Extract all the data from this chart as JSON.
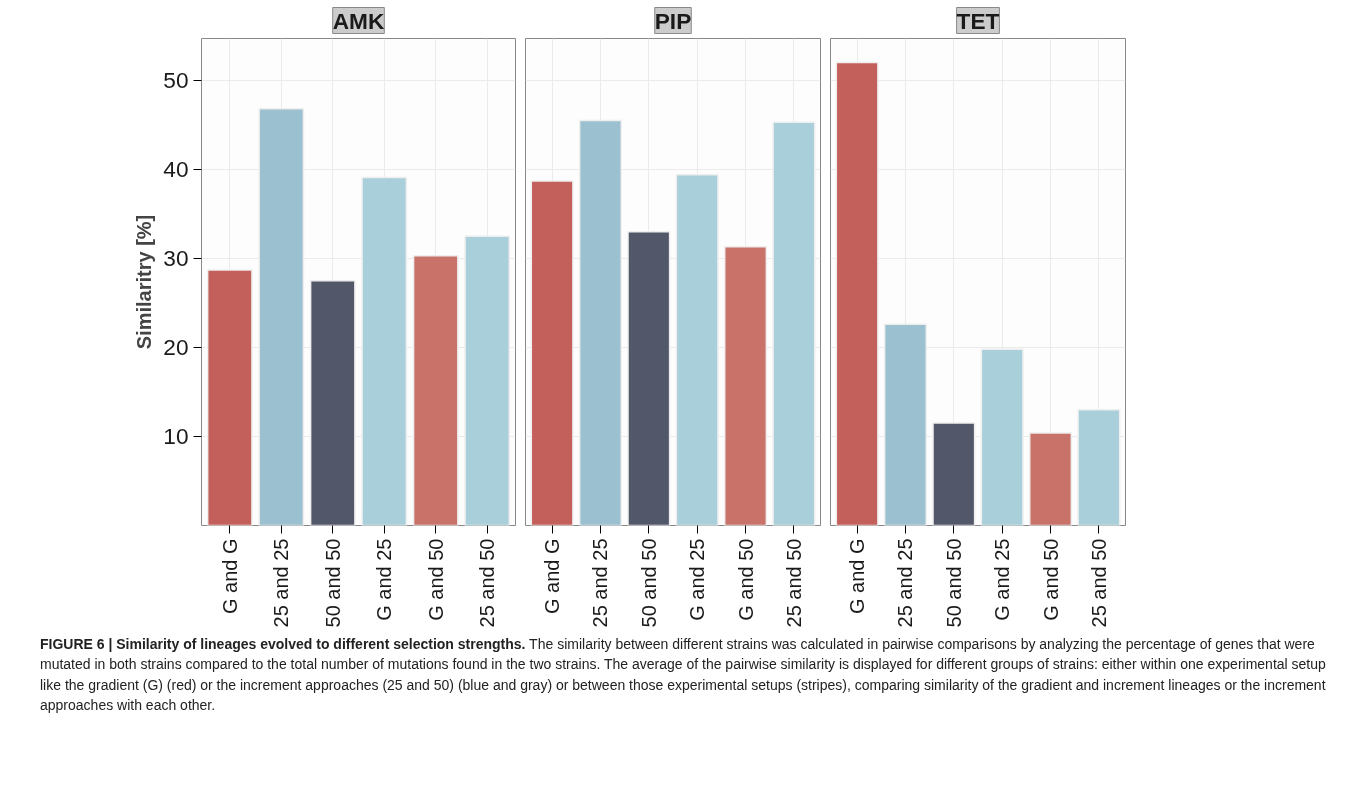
{
  "chart_data": [
    {
      "type": "bar",
      "title": "AMK",
      "ylabel": "Similaritry [%]",
      "categories": [
        "G and G",
        "25 and 25",
        "50 and 50",
        "G and 25",
        "G and 50",
        "25 and 50"
      ],
      "values": [
        28.7,
        46.8,
        27.5,
        39.1,
        30.3,
        32.5
      ],
      "colors": [
        "#c4605c",
        "#9bc0d0",
        "#525869",
        "#a9cfdb",
        "#c8726a",
        "#a9cfdb"
      ],
      "ylim": [
        0,
        54.7
      ],
      "yticks": [
        10,
        20,
        30,
        40,
        50
      ],
      "grid": true,
      "annotations": [
        "FIGURE 6 | Similarity of lineages evolved to different selection strengths.",
        "The similarity between different strains was calculated in pairwise comparisons by analyzing the percentage of genes that were mutated in both strains compared to the total number of mutations found in the two strains. The average of the pairwise similarity is displayed for different groups of strains: either within one experimental setup like the gradient (G) (red) or the increment approaches (25 and 50) (blue and gray) or between those experimental setups (stripes), comparing similarity of the gradient and increment lineages or the increment approaches with each other."
      ]
    },
    {
      "type": "bar",
      "title": "PIP",
      "categories": [
        "G and G",
        "25 and 25",
        "50 and 50",
        "G and 25",
        "G and 50",
        "25 and 50"
      ],
      "values": [
        38.7,
        45.5,
        33.0,
        39.4,
        31.3,
        45.3
      ],
      "colors": [
        "#c4605c",
        "#9bc0d0",
        "#525869",
        "#a9cfdb",
        "#c8726a",
        "#a9cfdb"
      ],
      "ylim": [
        0,
        54.7
      ],
      "yticks": [
        10,
        20,
        30,
        40,
        50
      ],
      "grid": true,
      "tick_labels": "x"
    },
    {
      "type": "bar",
      "title": "TET",
      "categories": [
        "G and G",
        "25 and 25",
        "50 and 50",
        "G and 25",
        "G and 50",
        "25 and 50"
      ],
      "values": [
        52.0,
        22.6,
        11.5,
        19.8,
        10.4,
        13.0
      ],
      "colors": [
        "#c4605c",
        "#9bc0d0",
        "#525869",
        "#a9cfdb",
        "#c8726a",
        "#a9cfdb"
      ],
      "ylim": [
        0,
        54.7
      ],
      "yticks": [
        10,
        20,
        30,
        40,
        50
      ],
      "grid": true,
      "tick_labels": "x"
    }
  ]
}
